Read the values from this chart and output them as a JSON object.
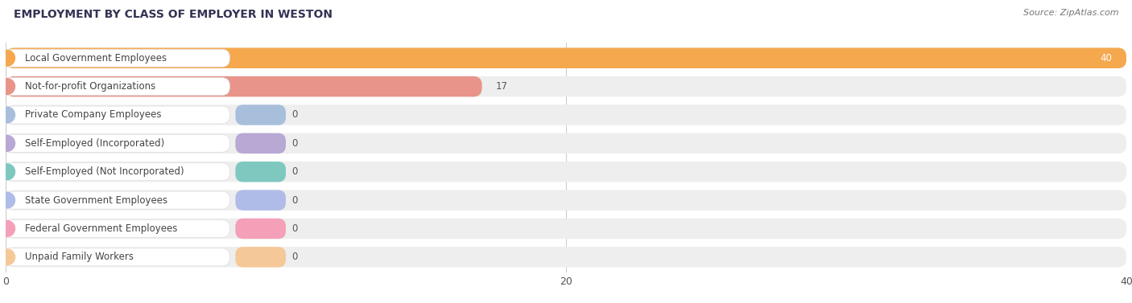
{
  "title": "EMPLOYMENT BY CLASS OF EMPLOYER IN WESTON",
  "source": "Source: ZipAtlas.com",
  "categories": [
    "Local Government Employees",
    "Not-for-profit Organizations",
    "Private Company Employees",
    "Self-Employed (Incorporated)",
    "Self-Employed (Not Incorporated)",
    "State Government Employees",
    "Federal Government Employees",
    "Unpaid Family Workers"
  ],
  "values": [
    40,
    17,
    0,
    0,
    0,
    0,
    0,
    0
  ],
  "bar_colors": [
    "#f5a84e",
    "#e8948a",
    "#a8bfdc",
    "#b8a8d4",
    "#7ec8c0",
    "#b0bce8",
    "#f4a0b8",
    "#f5c898"
  ],
  "label_bg_color": "#ffffff",
  "bar_bg_color": "#eeeeee",
  "row_bg_color": "#f5f5f5",
  "xlim_max": 40,
  "xticks": [
    0,
    20,
    40
  ],
  "title_fontsize": 10,
  "source_fontsize": 8,
  "label_fontsize": 8.5,
  "value_fontsize": 8.5,
  "background_color": "#ffffff",
  "grid_color": "#cccccc"
}
